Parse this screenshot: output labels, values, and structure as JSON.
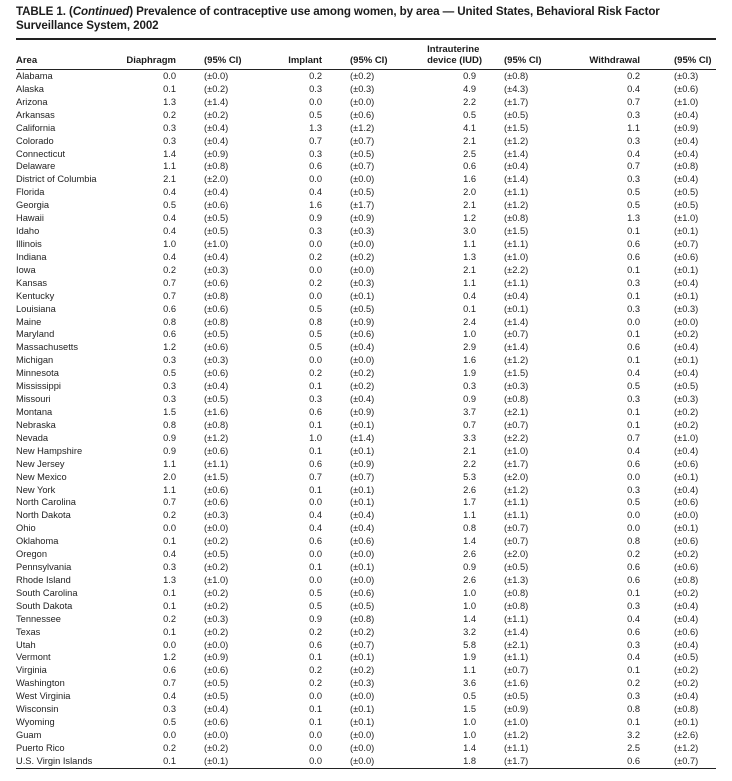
{
  "title": {
    "p1": "TABLE 1. (",
    "p2": "Continued",
    "p3": ") Prevalence of contraceptive use among women, by area — United States, Behavioral Risk Factor Surveillance System, 2002"
  },
  "table": {
    "headers": {
      "area": "Area",
      "diaphragm": "Diaphragm",
      "ci": "(95% CI)",
      "implant": "Implant",
      "iud_line1": "Intrauterine",
      "iud_line2": "device (IUD)",
      "withdrawal": "Withdrawal"
    },
    "rows": [
      [
        "Alabama",
        "0.0",
        "(±0.0)",
        "0.2",
        "(±0.2)",
        "0.9",
        "(±0.8)",
        "0.2",
        "(±0.3)"
      ],
      [
        "Alaska",
        "0.1",
        "(±0.2)",
        "0.3",
        "(±0.3)",
        "4.9",
        "(±4.3)",
        "0.4",
        "(±0.6)"
      ],
      [
        "Arizona",
        "1.3",
        "(±1.4)",
        "0.0",
        "(±0.0)",
        "2.2",
        "(±1.7)",
        "0.7",
        "(±1.0)"
      ],
      [
        "Arkansas",
        "0.2",
        "(±0.2)",
        "0.5",
        "(±0.6)",
        "0.5",
        "(±0.5)",
        "0.3",
        "(±0.4)"
      ],
      [
        "California",
        "0.3",
        "(±0.4)",
        "1.3",
        "(±1.2)",
        "4.1",
        "(±1.5)",
        "1.1",
        "(±0.9)"
      ],
      [
        "Colorado",
        "0.3",
        "(±0.4)",
        "0.7",
        "(±0.7)",
        "2.1",
        "(±1.2)",
        "0.3",
        "(±0.4)"
      ],
      [
        "Connecticut",
        "1.4",
        "(±0.9)",
        "0.3",
        "(±0.5)",
        "2.5",
        "(±1.4)",
        "0.4",
        "(±0.4)"
      ],
      [
        "Delaware",
        "1.1",
        "(±0.8)",
        "0.6",
        "(±0.7)",
        "0.6",
        "(±0.4)",
        "0.7",
        "(±0.8)"
      ],
      [
        "District of Columbia",
        "2.1",
        "(±2.0)",
        "0.0",
        "(±0.0)",
        "1.6",
        "(±1.4)",
        "0.3",
        "(±0.4)"
      ],
      [
        "Florida",
        "0.4",
        "(±0.4)",
        "0.4",
        "(±0.5)",
        "2.0",
        "(±1.1)",
        "0.5",
        "(±0.5)"
      ],
      [
        "Georgia",
        "0.5",
        "(±0.6)",
        "1.6",
        "(±1.7)",
        "2.1",
        "(±1.2)",
        "0.5",
        "(±0.5)"
      ],
      [
        "Hawaii",
        "0.4",
        "(±0.5)",
        "0.9",
        "(±0.9)",
        "1.2",
        "(±0.8)",
        "1.3",
        "(±1.0)"
      ],
      [
        "Idaho",
        "0.4",
        "(±0.5)",
        "0.3",
        "(±0.3)",
        "3.0",
        "(±1.5)",
        "0.1",
        "(±0.1)"
      ],
      [
        "Illinois",
        "1.0",
        "(±1.0)",
        "0.0",
        "(±0.0)",
        "1.1",
        "(±1.1)",
        "0.6",
        "(±0.7)"
      ],
      [
        "Indiana",
        "0.4",
        "(±0.4)",
        "0.2",
        "(±0.2)",
        "1.3",
        "(±1.0)",
        "0.6",
        "(±0.6)"
      ],
      [
        "Iowa",
        "0.2",
        "(±0.3)",
        "0.0",
        "(±0.0)",
        "2.1",
        "(±2.2)",
        "0.1",
        "(±0.1)"
      ],
      [
        "Kansas",
        "0.7",
        "(±0.6)",
        "0.2",
        "(±0.3)",
        "1.1",
        "(±1.1)",
        "0.3",
        "(±0.4)"
      ],
      [
        "Kentucky",
        "0.7",
        "(±0.8)",
        "0.0",
        "(±0.1)",
        "0.4",
        "(±0.4)",
        "0.1",
        "(±0.1)"
      ],
      [
        "Louisiana",
        "0.6",
        "(±0.6)",
        "0.5",
        "(±0.5)",
        "0.1",
        "(±0.1)",
        "0.3",
        "(±0.3)"
      ],
      [
        "Maine",
        "0.8",
        "(±0.8)",
        "0.8",
        "(±0.9)",
        "2.4",
        "(±1.4)",
        "0.0",
        "(±0.0)"
      ],
      [
        "Maryland",
        "0.6",
        "(±0.5)",
        "0.5",
        "(±0.6)",
        "1.0",
        "(±0.7)",
        "0.1",
        "(±0.2)"
      ],
      [
        "Massachusetts",
        "1.2",
        "(±0.6)",
        "0.5",
        "(±0.4)",
        "2.9",
        "(±1.4)",
        "0.6",
        "(±0.4)"
      ],
      [
        "Michigan",
        "0.3",
        "(±0.3)",
        "0.0",
        "(±0.0)",
        "1.6",
        "(±1.2)",
        "0.1",
        "(±0.1)"
      ],
      [
        "Minnesota",
        "0.5",
        "(±0.6)",
        "0.2",
        "(±0.2)",
        "1.9",
        "(±1.5)",
        "0.4",
        "(±0.4)"
      ],
      [
        "Mississippi",
        "0.3",
        "(±0.4)",
        "0.1",
        "(±0.2)",
        "0.3",
        "(±0.3)",
        "0.5",
        "(±0.5)"
      ],
      [
        "Missouri",
        "0.3",
        "(±0.5)",
        "0.3",
        "(±0.4)",
        "0.9",
        "(±0.8)",
        "0.3",
        "(±0.3)"
      ],
      [
        "Montana",
        "1.5",
        "(±1.6)",
        "0.6",
        "(±0.9)",
        "3.7",
        "(±2.1)",
        "0.1",
        "(±0.2)"
      ],
      [
        "Nebraska",
        "0.8",
        "(±0.8)",
        "0.1",
        "(±0.1)",
        "0.7",
        "(±0.7)",
        "0.1",
        "(±0.2)"
      ],
      [
        "Nevada",
        "0.9",
        "(±1.2)",
        "1.0",
        "(±1.4)",
        "3.3",
        "(±2.2)",
        "0.7",
        "(±1.0)"
      ],
      [
        "New Hampshire",
        "0.9",
        "(±0.6)",
        "0.1",
        "(±0.1)",
        "2.1",
        "(±1.0)",
        "0.4",
        "(±0.4)"
      ],
      [
        "New Jersey",
        "1.1",
        "(±1.1)",
        "0.6",
        "(±0.9)",
        "2.2",
        "(±1.7)",
        "0.6",
        "(±0.6)"
      ],
      [
        "New Mexico",
        "2.0",
        "(±1.5)",
        "0.7",
        "(±0.7)",
        "5.3",
        "(±2.0)",
        "0.0",
        "(±0.1)"
      ],
      [
        "New York",
        "1.1",
        "(±0.6)",
        "0.1",
        "(±0.1)",
        "2.6",
        "(±1.2)",
        "0.3",
        "(±0.4)"
      ],
      [
        "North Carolina",
        "0.7",
        "(±0.6)",
        "0.0",
        "(±0.1)",
        "1.7",
        "(±1.1)",
        "0.5",
        "(±0.6)"
      ],
      [
        "North Dakota",
        "0.2",
        "(±0.3)",
        "0.4",
        "(±0.4)",
        "1.1",
        "(±1.1)",
        "0.0",
        "(±0.0)"
      ],
      [
        "Ohio",
        "0.0",
        "(±0.0)",
        "0.4",
        "(±0.4)",
        "0.8",
        "(±0.7)",
        "0.0",
        "(±0.1)"
      ],
      [
        "Oklahoma",
        "0.1",
        "(±0.2)",
        "0.6",
        "(±0.6)",
        "1.4",
        "(±0.7)",
        "0.8",
        "(±0.6)"
      ],
      [
        "Oregon",
        "0.4",
        "(±0.5)",
        "0.0",
        "(±0.0)",
        "2.6",
        "(±2.0)",
        "0.2",
        "(±0.2)"
      ],
      [
        "Pennsylvania",
        "0.3",
        "(±0.2)",
        "0.1",
        "(±0.1)",
        "0.9",
        "(±0.5)",
        "0.6",
        "(±0.6)"
      ],
      [
        "Rhode Island",
        "1.3",
        "(±1.0)",
        "0.0",
        "(±0.0)",
        "2.6",
        "(±1.3)",
        "0.6",
        "(±0.8)"
      ],
      [
        "South Carolina",
        "0.1",
        "(±0.2)",
        "0.5",
        "(±0.6)",
        "1.0",
        "(±0.8)",
        "0.1",
        "(±0.2)"
      ],
      [
        "South Dakota",
        "0.1",
        "(±0.2)",
        "0.5",
        "(±0.5)",
        "1.0",
        "(±0.8)",
        "0.3",
        "(±0.4)"
      ],
      [
        "Tennessee",
        "0.2",
        "(±0.3)",
        "0.9",
        "(±0.8)",
        "1.4",
        "(±1.1)",
        "0.4",
        "(±0.4)"
      ],
      [
        "Texas",
        "0.1",
        "(±0.2)",
        "0.2",
        "(±0.2)",
        "3.2",
        "(±1.4)",
        "0.6",
        "(±0.6)"
      ],
      [
        "Utah",
        "0.0",
        "(±0.0)",
        "0.6",
        "(±0.7)",
        "5.8",
        "(±2.1)",
        "0.3",
        "(±0.4)"
      ],
      [
        "Vermont",
        "1.2",
        "(±0.9)",
        "0.1",
        "(±0.1)",
        "1.9",
        "(±1.1)",
        "0.4",
        "(±0.5)"
      ],
      [
        "Virginia",
        "0.6",
        "(±0.6)",
        "0.2",
        "(±0.2)",
        "1.1",
        "(±0.7)",
        "0.1",
        "(±0.2)"
      ],
      [
        "Washington",
        "0.7",
        "(±0.5)",
        "0.2",
        "(±0.3)",
        "3.6",
        "(±1.6)",
        "0.2",
        "(±0.2)"
      ],
      [
        "West Virginia",
        "0.4",
        "(±0.5)",
        "0.0",
        "(±0.0)",
        "0.5",
        "(±0.5)",
        "0.3",
        "(±0.4)"
      ],
      [
        "Wisconsin",
        "0.3",
        "(±0.4)",
        "0.1",
        "(±0.1)",
        "1.5",
        "(±0.9)",
        "0.8",
        "(±0.8)"
      ],
      [
        "Wyoming",
        "0.5",
        "(±0.6)",
        "0.1",
        "(±0.1)",
        "1.0",
        "(±1.0)",
        "0.1",
        "(±0.1)"
      ],
      [
        "Guam",
        "0.0",
        "(±0.0)",
        "0.0",
        "(±0.0)",
        "1.0",
        "(±1.2)",
        "3.2",
        "(±2.6)"
      ],
      [
        "Puerto Rico",
        "0.2",
        "(±0.2)",
        "0.0",
        "(±0.0)",
        "1.4",
        "(±1.1)",
        "2.5",
        "(±1.2)"
      ],
      [
        "U.S. Virgin Islands",
        "0.1",
        "(±0.1)",
        "0.0",
        "(±0.0)",
        "1.8",
        "(±1.7)",
        "0.6",
        "(±0.7)"
      ]
    ]
  },
  "colors": {
    "text": "#1f1f1f",
    "rule": "#222222",
    "background": "#ffffff"
  }
}
